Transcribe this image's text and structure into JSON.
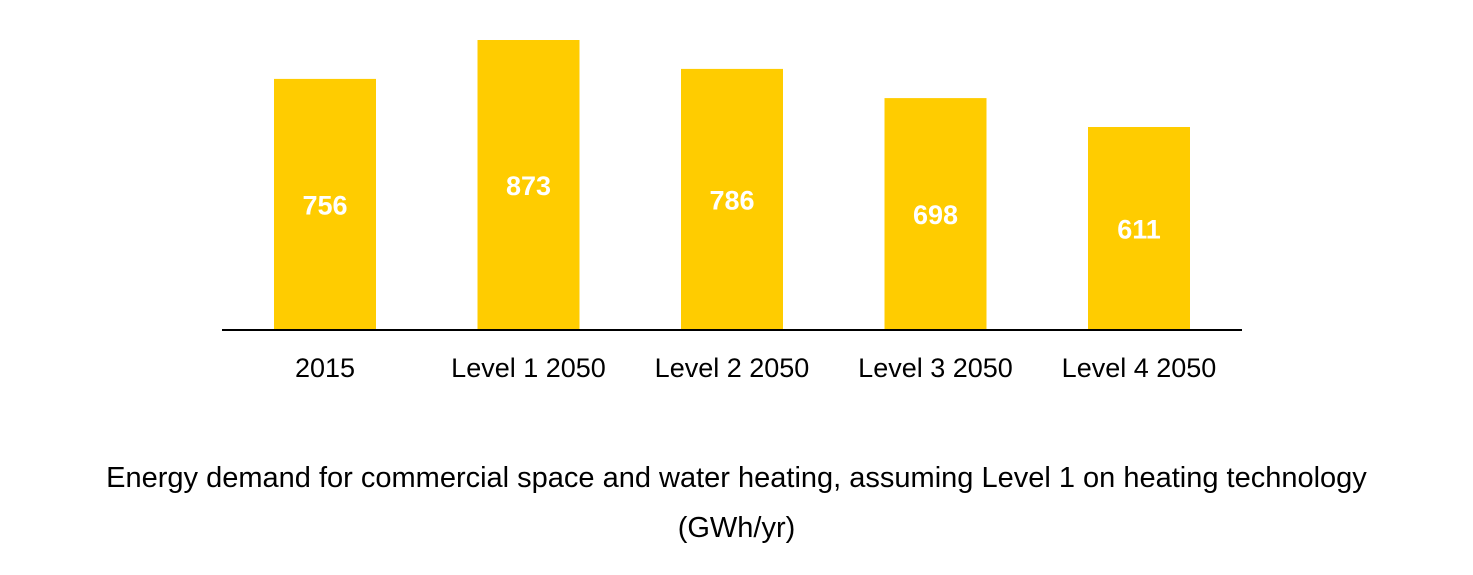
{
  "chart_data": {
    "type": "bar",
    "categories": [
      "2015",
      "Level 1 2050",
      "Level 2 2050",
      "Level 3 2050",
      "Level 4 2050"
    ],
    "values": [
      756,
      873,
      786,
      698,
      611
    ],
    "title": "Energy demand for commercial space and water heating, assuming Level 1 on heating technology",
    "subtitle": "(GWh/yr)",
    "xlabel": "",
    "ylabel": "",
    "ylim": [
      0,
      873
    ],
    "grid": false,
    "legend": "none",
    "data_labels": "inside bars, white bold",
    "colors": {
      "bar": "#FFCC00",
      "data_label": "#FFFFFF",
      "axis": "#000000",
      "text": "#000000"
    }
  }
}
